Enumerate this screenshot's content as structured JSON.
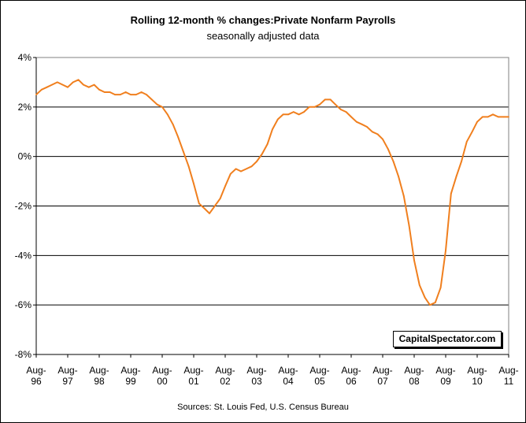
{
  "chart_data": {
    "type": "line",
    "title": "Rolling 12-month %  changes:Private Nonfarm Payrolls",
    "subtitle": "seasonally adjusted data",
    "source": "Sources: St. Louis Fed, U.S. Census Bureau",
    "watermark": "CapitalSpectator.com",
    "ylim": [
      -8,
      4
    ],
    "y_ticks": [
      {
        "value": 4,
        "label": "4%"
      },
      {
        "value": 2,
        "label": "2%"
      },
      {
        "value": 0,
        "label": "0%"
      },
      {
        "value": -2,
        "label": "-2%"
      },
      {
        "value": -4,
        "label": "-4%"
      },
      {
        "value": -6,
        "label": "-6%"
      },
      {
        "value": -8,
        "label": "-8%"
      }
    ],
    "x_ticks": [
      {
        "value": 1996.58,
        "month": "Aug-",
        "year": "96"
      },
      {
        "value": 1997.58,
        "month": "Aug-",
        "year": "97"
      },
      {
        "value": 1998.58,
        "month": "Aug-",
        "year": "98"
      },
      {
        "value": 1999.58,
        "month": "Aug-",
        "year": "99"
      },
      {
        "value": 2000.58,
        "month": "Aug-",
        "year": "00"
      },
      {
        "value": 2001.58,
        "month": "Aug-",
        "year": "01"
      },
      {
        "value": 2002.58,
        "month": "Aug-",
        "year": "02"
      },
      {
        "value": 2003.58,
        "month": "Aug-",
        "year": "03"
      },
      {
        "value": 2004.58,
        "month": "Aug-",
        "year": "04"
      },
      {
        "value": 2005.58,
        "month": "Aug-",
        "year": "05"
      },
      {
        "value": 2006.58,
        "month": "Aug-",
        "year": "06"
      },
      {
        "value": 2007.58,
        "month": "Aug-",
        "year": "07"
      },
      {
        "value": 2008.58,
        "month": "Aug-",
        "year": "08"
      },
      {
        "value": 2009.58,
        "month": "Aug-",
        "year": "09"
      },
      {
        "value": 2010.58,
        "month": "Aug-",
        "year": "10"
      },
      {
        "value": 2011.58,
        "month": "Aug-",
        "year": "11"
      }
    ],
    "xlim": [
      1996.58,
      2011.58
    ],
    "grid": "horizontal",
    "legend": "none",
    "series": [
      {
        "color": "#f07f1e",
        "x": [
          1996.58,
          1996.75,
          1996.92,
          1997.08,
          1997.25,
          1997.42,
          1997.58,
          1997.75,
          1997.92,
          1998.08,
          1998.25,
          1998.42,
          1998.58,
          1998.75,
          1998.92,
          1999.08,
          1999.25,
          1999.42,
          1999.58,
          1999.75,
          1999.92,
          2000.08,
          2000.25,
          2000.42,
          2000.58,
          2000.75,
          2000.92,
          2001.08,
          2001.25,
          2001.42,
          2001.58,
          2001.75,
          2001.92,
          2002.08,
          2002.25,
          2002.42,
          2002.58,
          2002.75,
          2002.92,
          2003.08,
          2003.25,
          2003.42,
          2003.58,
          2003.75,
          2003.92,
          2004.08,
          2004.25,
          2004.42,
          2004.58,
          2004.75,
          2004.92,
          2005.08,
          2005.25,
          2005.42,
          2005.58,
          2005.75,
          2005.92,
          2006.08,
          2006.25,
          2006.42,
          2006.58,
          2006.75,
          2006.92,
          2007.08,
          2007.25,
          2007.42,
          2007.58,
          2007.75,
          2007.92,
          2008.08,
          2008.25,
          2008.42,
          2008.58,
          2008.75,
          2008.92,
          2009.08,
          2009.25,
          2009.42,
          2009.58,
          2009.75,
          2009.92,
          2010.08,
          2010.25,
          2010.42,
          2010.58,
          2010.75,
          2010.92,
          2011.08,
          2011.25,
          2011.42,
          2011.58
        ],
        "values": [
          2.5,
          2.7,
          2.8,
          2.9,
          3.0,
          2.9,
          2.8,
          3.0,
          3.1,
          2.9,
          2.8,
          2.9,
          2.7,
          2.6,
          2.6,
          2.5,
          2.5,
          2.6,
          2.5,
          2.5,
          2.6,
          2.5,
          2.3,
          2.1,
          2.0,
          1.7,
          1.3,
          0.8,
          0.2,
          -0.4,
          -1.1,
          -1.9,
          -2.1,
          -2.3,
          -2.0,
          -1.7,
          -1.2,
          -0.7,
          -0.5,
          -0.6,
          -0.5,
          -0.4,
          -0.2,
          0.1,
          0.5,
          1.1,
          1.5,
          1.7,
          1.7,
          1.8,
          1.7,
          1.8,
          2.0,
          2.0,
          2.1,
          2.3,
          2.3,
          2.1,
          1.9,
          1.8,
          1.6,
          1.4,
          1.3,
          1.2,
          1.0,
          0.9,
          0.7,
          0.3,
          -0.2,
          -0.8,
          -1.6,
          -2.8,
          -4.2,
          -5.2,
          -5.7,
          -6.0,
          -5.9,
          -5.3,
          -3.8,
          -1.5,
          -0.8,
          -0.2,
          0.6,
          1.0,
          1.4,
          1.6,
          1.6,
          1.7,
          1.6,
          1.6,
          1.6
        ]
      }
    ]
  }
}
